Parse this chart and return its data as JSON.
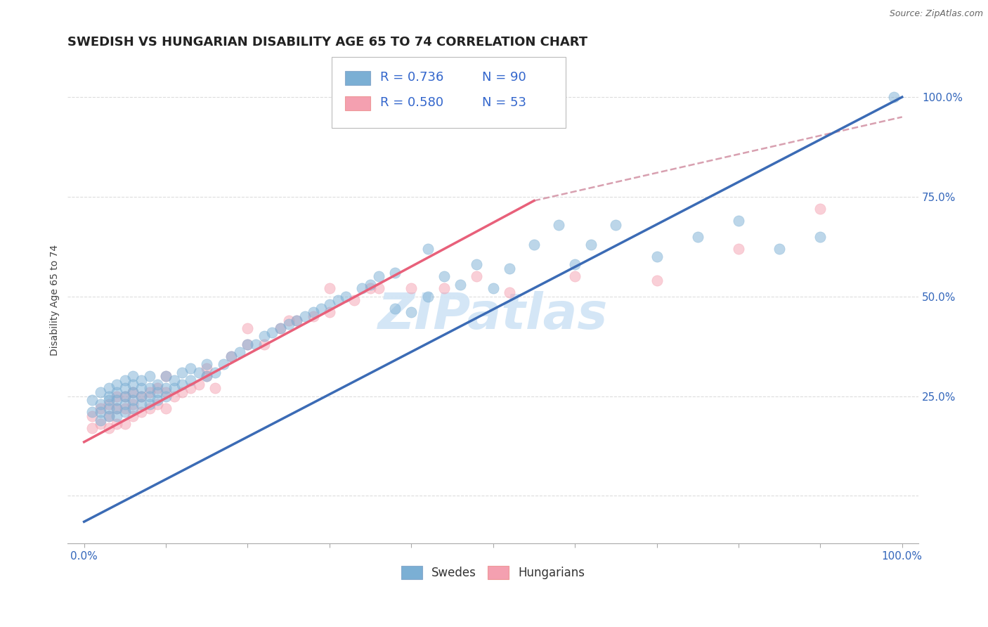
{
  "title": "SWEDISH VS HUNGARIAN DISABILITY AGE 65 TO 74 CORRELATION CHART",
  "source_text": "Source: ZipAtlas.com",
  "ylabel": "Disability Age 65 to 74",
  "xlim": [
    -0.02,
    1.02
  ],
  "ylim": [
    -0.12,
    1.1
  ],
  "x_ticks": [
    0.0,
    0.1,
    0.2,
    0.3,
    0.4,
    0.5,
    0.6,
    0.7,
    0.8,
    0.9,
    1.0
  ],
  "x_tick_labels": [
    "0.0%",
    "",
    "",
    "",
    "",
    "",
    "",
    "",
    "",
    "",
    "100.0%"
  ],
  "y_ticks": [
    0.0,
    0.25,
    0.5,
    0.75,
    1.0
  ],
  "y_tick_labels": [
    "",
    "25.0%",
    "50.0%",
    "75.0%",
    "100.0%"
  ],
  "blue_color": "#7BAFD4",
  "pink_color": "#F4A0B0",
  "blue_line_color": "#3B6BB5",
  "pink_line_color": "#E8607A",
  "dashed_line_color": "#D8A0B0",
  "watermark_color": "#D0E4F5",
  "legend_R_blue": "0.736",
  "legend_N_blue": "90",
  "legend_R_pink": "0.580",
  "legend_N_pink": "53",
  "blue_line_x0": 0.0,
  "blue_line_y0": -0.065,
  "blue_line_x1": 1.0,
  "blue_line_y1": 1.0,
  "pink_line_x0": 0.0,
  "pink_line_y0": 0.135,
  "pink_line_x1": 0.55,
  "pink_line_y1": 0.74,
  "dash_line_x0": 0.55,
  "dash_line_y0": 0.74,
  "dash_line_x1": 1.0,
  "dash_line_y1": 0.95,
  "blue_scatter_x": [
    0.01,
    0.01,
    0.02,
    0.02,
    0.02,
    0.02,
    0.03,
    0.03,
    0.03,
    0.03,
    0.03,
    0.04,
    0.04,
    0.04,
    0.04,
    0.04,
    0.05,
    0.05,
    0.05,
    0.05,
    0.05,
    0.06,
    0.06,
    0.06,
    0.06,
    0.06,
    0.07,
    0.07,
    0.07,
    0.07,
    0.08,
    0.08,
    0.08,
    0.08,
    0.09,
    0.09,
    0.09,
    0.1,
    0.1,
    0.1,
    0.11,
    0.11,
    0.12,
    0.12,
    0.13,
    0.13,
    0.14,
    0.15,
    0.15,
    0.16,
    0.17,
    0.18,
    0.19,
    0.2,
    0.21,
    0.22,
    0.23,
    0.24,
    0.25,
    0.26,
    0.27,
    0.28,
    0.29,
    0.3,
    0.31,
    0.32,
    0.34,
    0.35,
    0.36,
    0.38,
    0.4,
    0.42,
    0.44,
    0.46,
    0.48,
    0.5,
    0.52,
    0.55,
    0.58,
    0.6,
    0.62,
    0.65,
    0.7,
    0.75,
    0.8,
    0.85,
    0.9,
    0.99,
    0.38,
    0.42
  ],
  "blue_scatter_y": [
    0.21,
    0.24,
    0.19,
    0.21,
    0.23,
    0.26,
    0.2,
    0.22,
    0.24,
    0.25,
    0.27,
    0.2,
    0.22,
    0.24,
    0.26,
    0.28,
    0.21,
    0.23,
    0.25,
    0.27,
    0.29,
    0.22,
    0.24,
    0.26,
    0.28,
    0.3,
    0.23,
    0.25,
    0.27,
    0.29,
    0.23,
    0.25,
    0.27,
    0.3,
    0.24,
    0.26,
    0.28,
    0.25,
    0.27,
    0.3,
    0.27,
    0.29,
    0.28,
    0.31,
    0.29,
    0.32,
    0.31,
    0.3,
    0.33,
    0.31,
    0.33,
    0.35,
    0.36,
    0.38,
    0.38,
    0.4,
    0.41,
    0.42,
    0.43,
    0.44,
    0.45,
    0.46,
    0.47,
    0.48,
    0.49,
    0.5,
    0.52,
    0.53,
    0.55,
    0.56,
    0.46,
    0.5,
    0.55,
    0.53,
    0.58,
    0.52,
    0.57,
    0.63,
    0.68,
    0.58,
    0.63,
    0.68,
    0.6,
    0.65,
    0.69,
    0.62,
    0.65,
    1.0,
    0.47,
    0.62
  ],
  "pink_scatter_x": [
    0.01,
    0.01,
    0.02,
    0.02,
    0.03,
    0.03,
    0.03,
    0.04,
    0.04,
    0.04,
    0.05,
    0.05,
    0.05,
    0.06,
    0.06,
    0.06,
    0.07,
    0.07,
    0.08,
    0.08,
    0.09,
    0.09,
    0.1,
    0.1,
    0.11,
    0.12,
    0.13,
    0.14,
    0.15,
    0.16,
    0.18,
    0.2,
    0.22,
    0.24,
    0.26,
    0.28,
    0.3,
    0.33,
    0.36,
    0.4,
    0.44,
    0.48,
    0.52,
    0.6,
    0.7,
    0.8,
    0.9,
    0.15,
    0.2,
    0.25,
    0.3,
    0.35,
    0.1
  ],
  "pink_scatter_y": [
    0.17,
    0.2,
    0.18,
    0.22,
    0.17,
    0.2,
    0.23,
    0.18,
    0.22,
    0.25,
    0.18,
    0.22,
    0.25,
    0.2,
    0.23,
    0.26,
    0.21,
    0.25,
    0.22,
    0.26,
    0.23,
    0.27,
    0.22,
    0.26,
    0.25,
    0.26,
    0.27,
    0.28,
    0.3,
    0.27,
    0.35,
    0.38,
    0.38,
    0.42,
    0.44,
    0.45,
    0.46,
    0.49,
    0.52,
    0.52,
    0.52,
    0.55,
    0.51,
    0.55,
    0.54,
    0.62,
    0.72,
    0.32,
    0.42,
    0.44,
    0.52,
    0.52,
    0.3
  ],
  "title_fontsize": 13,
  "axis_label_fontsize": 10,
  "tick_fontsize": 11,
  "legend_fontsize": 13,
  "background_color": "#FFFFFF",
  "grid_color": "#DDDDDD",
  "scatter_size": 120
}
